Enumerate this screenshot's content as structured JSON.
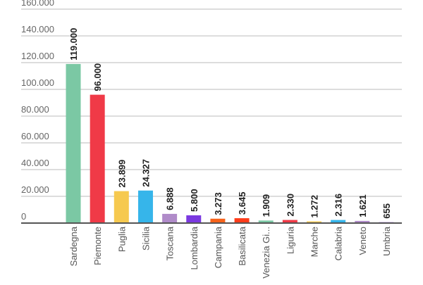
{
  "chart_data": {
    "type": "bar",
    "title": "",
    "xlabel": "",
    "ylabel": "",
    "ylim": [
      0,
      160000
    ],
    "yticks": [
      0,
      20000,
      40000,
      60000,
      80000,
      100000,
      120000,
      140000,
      160000
    ],
    "ytick_labels": [
      "0",
      "20.000",
      "40.000",
      "60.000",
      "80.000",
      "100.000",
      "120.000",
      "140.000",
      "160.000"
    ],
    "grid": true,
    "categories": [
      "Sardegna",
      "Piemonte",
      "Puglia",
      "Sicilia",
      "Toscana",
      "Lombardia",
      "Campania",
      "Basilicata",
      "Venezia Gi...",
      "Liguria",
      "Marche",
      "Calabria",
      "Veneto",
      "Umbria"
    ],
    "values": [
      119000,
      96000,
      23899,
      24327,
      6888,
      5800,
      3273,
      3645,
      1909,
      2330,
      1272,
      2316,
      1621,
      655
    ],
    "data_labels": [
      "119.000",
      "96.000",
      "23.899",
      "24.327",
      "6.888",
      "5.800",
      "3.273",
      "3.645",
      "1.909",
      "2.330",
      "1.272",
      "2.316",
      "1.621",
      "655"
    ],
    "colors": [
      "#7bc8a4",
      "#f03a47",
      "#f6c94f",
      "#36b5ea",
      "#b08bc9",
      "#7b39e0",
      "#f7631b",
      "#ff3c1a",
      "#7bc8a4",
      "#f03a47",
      "#f6c94f",
      "#36b5ea",
      "#b08bc9",
      "#7b39e0"
    ]
  }
}
